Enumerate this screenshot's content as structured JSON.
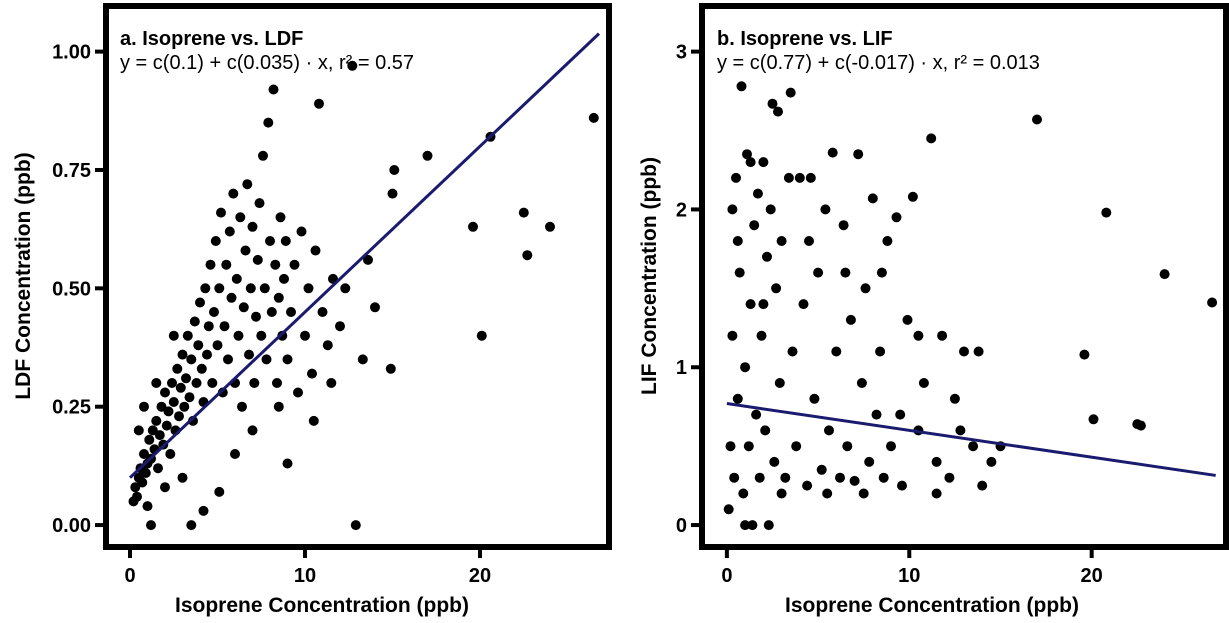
{
  "chart_data": [
    {
      "type": "scatter",
      "title": "a. Isoprene vs. LDF",
      "equation": "y = c(0.1) + c(0.035) · x,  r² = 0.57",
      "xlabel": "Isoprene Concentration (ppb)",
      "ylabel": "LDF Concentration (ppb)",
      "xlim": [
        -1.2,
        27.2
      ],
      "ylim": [
        -0.04,
        1.09
      ],
      "x_ticks": [
        0,
        10,
        20
      ],
      "x_tick_labels": [
        "0",
        "10",
        "20"
      ],
      "y_ticks": [
        0,
        0.25,
        0.5,
        0.75,
        1.0
      ],
      "y_tick_labels": [
        "0.00",
        "0.25",
        "0.50",
        "0.75",
        "1.00"
      ],
      "grid": false,
      "point_color": "#000000",
      "fit": {
        "intercept": 0.1,
        "slope": 0.035,
        "x_range": [
          0,
          26.8
        ],
        "r2": 0.57,
        "color": "#1a1a6e"
      },
      "series": [
        {
          "points": [
            [
              0.2,
              0.05
            ],
            [
              0.3,
              0.08
            ],
            [
              0.4,
              0.06
            ],
            [
              0.5,
              0.1
            ],
            [
              0.6,
              0.12
            ],
            [
              0.7,
              0.09
            ],
            [
              0.8,
              0.15
            ],
            [
              0.9,
              0.11
            ],
            [
              1.0,
              0.13
            ],
            [
              1.1,
              0.18
            ],
            [
              1.2,
              0.14
            ],
            [
              1.3,
              0.2
            ],
            [
              1.4,
              0.16
            ],
            [
              1.5,
              0.22
            ],
            [
              1.6,
              0.12
            ],
            [
              1.7,
              0.19
            ],
            [
              1.8,
              0.25
            ],
            [
              1.9,
              0.17
            ],
            [
              2.0,
              0.28
            ],
            [
              2.1,
              0.21
            ],
            [
              2.2,
              0.24
            ],
            [
              2.3,
              0.15
            ],
            [
              2.4,
              0.3
            ],
            [
              2.5,
              0.26
            ],
            [
              2.6,
              0.2
            ],
            [
              2.7,
              0.33
            ],
            [
              2.8,
              0.23
            ],
            [
              2.9,
              0.29
            ],
            [
              3.0,
              0.36
            ],
            [
              3.1,
              0.25
            ],
            [
              3.2,
              0.31
            ],
            [
              3.3,
              0.4
            ],
            [
              3.4,
              0.27
            ],
            [
              3.5,
              0.35
            ],
            [
              3.6,
              0.22
            ],
            [
              3.7,
              0.43
            ],
            [
              3.8,
              0.3
            ],
            [
              3.9,
              0.38
            ],
            [
              4.0,
              0.47
            ],
            [
              4.1,
              0.33
            ],
            [
              4.2,
              0.26
            ],
            [
              4.3,
              0.5
            ],
            [
              4.4,
              0.36
            ],
            [
              4.5,
              0.42
            ],
            [
              4.6,
              0.55
            ],
            [
              4.7,
              0.3
            ],
            [
              4.8,
              0.45
            ],
            [
              4.9,
              0.6
            ],
            [
              5.0,
              0.38
            ],
            [
              5.1,
              0.5
            ],
            [
              5.2,
              0.66
            ],
            [
              5.3,
              0.28
            ],
            [
              5.4,
              0.42
            ],
            [
              5.5,
              0.55
            ],
            [
              5.6,
              0.35
            ],
            [
              5.7,
              0.62
            ],
            [
              5.8,
              0.48
            ],
            [
              5.9,
              0.7
            ],
            [
              6.0,
              0.3
            ],
            [
              6.1,
              0.52
            ],
            [
              6.2,
              0.4
            ],
            [
              6.3,
              0.65
            ],
            [
              6.4,
              0.25
            ],
            [
              6.5,
              0.46
            ],
            [
              6.6,
              0.58
            ],
            [
              6.7,
              0.72
            ],
            [
              6.8,
              0.36
            ],
            [
              6.9,
              0.5
            ],
            [
              7.0,
              0.63
            ],
            [
              7.1,
              0.3
            ],
            [
              7.2,
              0.44
            ],
            [
              7.3,
              0.56
            ],
            [
              7.4,
              0.68
            ],
            [
              7.5,
              0.4
            ],
            [
              7.6,
              0.78
            ],
            [
              7.7,
              0.5
            ],
            [
              7.8,
              0.35
            ],
            [
              7.9,
              0.85
            ],
            [
              8.0,
              0.6
            ],
            [
              8.1,
              0.45
            ],
            [
              8.2,
              0.92
            ],
            [
              8.3,
              0.55
            ],
            [
              8.4,
              0.3
            ],
            [
              8.5,
              0.48
            ],
            [
              8.6,
              0.65
            ],
            [
              8.7,
              0.4
            ],
            [
              8.8,
              0.52
            ],
            [
              8.9,
              0.6
            ],
            [
              9.0,
              0.35
            ],
            [
              9.2,
              0.45
            ],
            [
              9.4,
              0.55
            ],
            [
              9.6,
              0.28
            ],
            [
              9.8,
              0.62
            ],
            [
              10.0,
              0.4
            ],
            [
              10.2,
              0.5
            ],
            [
              10.4,
              0.32
            ],
            [
              10.6,
              0.58
            ],
            [
              10.8,
              0.89
            ],
            [
              11.0,
              0.45
            ],
            [
              11.3,
              0.38
            ],
            [
              11.6,
              0.52
            ],
            [
              12.0,
              0.42
            ],
            [
              12.3,
              0.5
            ],
            [
              12.7,
              0.97
            ],
            [
              12.9,
              0.0
            ],
            [
              13.3,
              0.35
            ],
            [
              13.6,
              0.56
            ],
            [
              14.0,
              0.46
            ],
            [
              14.9,
              0.33
            ],
            [
              15.0,
              0.7
            ],
            [
              15.1,
              0.75
            ],
            [
              17.0,
              0.78
            ],
            [
              19.6,
              0.63
            ],
            [
              20.1,
              0.4
            ],
            [
              20.6,
              0.82
            ],
            [
              22.5,
              0.66
            ],
            [
              22.7,
              0.57
            ],
            [
              24.0,
              0.63
            ],
            [
              26.5,
              0.86
            ],
            [
              1.2,
              0.0
            ],
            [
              3.5,
              0.0
            ],
            [
              4.2,
              0.03
            ],
            [
              5.1,
              0.07
            ],
            [
              2.0,
              0.08
            ],
            [
              3.0,
              0.1
            ],
            [
              1.0,
              0.04
            ],
            [
              6.0,
              0.15
            ],
            [
              7.0,
              0.2
            ],
            [
              8.5,
              0.25
            ],
            [
              0.5,
              0.2
            ],
            [
              1.5,
              0.3
            ],
            [
              2.5,
              0.4
            ],
            [
              0.8,
              0.25
            ],
            [
              9.0,
              0.13
            ],
            [
              10.5,
              0.22
            ],
            [
              11.5,
              0.3
            ]
          ]
        }
      ]
    },
    {
      "type": "scatter",
      "title": "b. Isoprene vs. LIF",
      "equation": "y = c(0.77) + c(-0.017) · x,  r² = 0.013",
      "xlabel": "Isoprene Concentration (ppb)",
      "ylabel": "LIF Concentration (ppb)",
      "xlim": [
        -1.2,
        27.2
      ],
      "ylim": [
        -0.12,
        3.27
      ],
      "x_ticks": [
        0,
        10,
        20
      ],
      "x_tick_labels": [
        "0",
        "10",
        "20"
      ],
      "y_ticks": [
        0,
        1,
        2,
        3
      ],
      "y_tick_labels": [
        "0",
        "1",
        "2",
        "3"
      ],
      "grid": false,
      "point_color": "#000000",
      "fit": {
        "intercept": 0.77,
        "slope": -0.017,
        "x_range": [
          0,
          26.8
        ],
        "r2": 0.013,
        "color": "#1a1a6e"
      },
      "series": [
        {
          "points": [
            [
              0.1,
              0.1
            ],
            [
              0.2,
              0.5
            ],
            [
              0.3,
              1.2
            ],
            [
              0.4,
              0.3
            ],
            [
              0.5,
              2.2
            ],
            [
              0.6,
              0.8
            ],
            [
              0.7,
              1.6
            ],
            [
              0.8,
              2.78
            ],
            [
              0.9,
              0.2
            ],
            [
              1.0,
              1.0
            ],
            [
              1.1,
              2.35
            ],
            [
              1.2,
              0.5
            ],
            [
              1.3,
              1.4
            ],
            [
              1.4,
              0.0
            ],
            [
              1.5,
              1.9
            ],
            [
              1.6,
              0.7
            ],
            [
              1.7,
              2.1
            ],
            [
              1.8,
              0.3
            ],
            [
              1.9,
              1.2
            ],
            [
              2.0,
              2.3
            ],
            [
              2.1,
              0.6
            ],
            [
              2.2,
              1.7
            ],
            [
              2.3,
              0.0
            ],
            [
              2.4,
              2.0
            ],
            [
              2.5,
              2.67
            ],
            [
              2.6,
              0.4
            ],
            [
              2.7,
              1.5
            ],
            [
              2.8,
              2.62
            ],
            [
              2.9,
              0.9
            ],
            [
              3.0,
              1.8
            ],
            [
              3.2,
              0.3
            ],
            [
              3.4,
              2.2
            ],
            [
              3.5,
              2.74
            ],
            [
              3.6,
              1.1
            ],
            [
              3.8,
              0.5
            ],
            [
              4.0,
              2.2
            ],
            [
              4.2,
              1.4
            ],
            [
              4.4,
              0.25
            ],
            [
              4.6,
              2.2
            ],
            [
              4.8,
              0.8
            ],
            [
              5.0,
              1.6
            ],
            [
              5.2,
              0.35
            ],
            [
              5.4,
              2.0
            ],
            [
              5.6,
              0.6
            ],
            [
              5.8,
              2.36
            ],
            [
              6.0,
              1.1
            ],
            [
              6.2,
              0.3
            ],
            [
              6.4,
              1.9
            ],
            [
              6.6,
              0.5
            ],
            [
              6.8,
              1.3
            ],
            [
              7.0,
              0.28
            ],
            [
              7.2,
              2.35
            ],
            [
              7.4,
              0.9
            ],
            [
              7.6,
              1.5
            ],
            [
              7.8,
              0.4
            ],
            [
              8.0,
              2.07
            ],
            [
              8.2,
              0.7
            ],
            [
              8.4,
              1.1
            ],
            [
              8.6,
              0.3
            ],
            [
              8.8,
              1.8
            ],
            [
              9.0,
              0.5
            ],
            [
              9.3,
              1.95
            ],
            [
              9.6,
              0.25
            ],
            [
              9.9,
              1.3
            ],
            [
              10.2,
              2.08
            ],
            [
              10.5,
              0.6
            ],
            [
              10.8,
              0.9
            ],
            [
              11.2,
              2.45
            ],
            [
              11.5,
              0.4
            ],
            [
              11.8,
              1.2
            ],
            [
              12.2,
              0.3
            ],
            [
              12.5,
              0.8
            ],
            [
              13.0,
              1.1
            ],
            [
              13.5,
              0.5
            ],
            [
              14.0,
              0.25
            ],
            [
              14.5,
              0.4
            ],
            [
              15.0,
              0.5
            ],
            [
              17.0,
              2.57
            ],
            [
              19.6,
              1.08
            ],
            [
              20.1,
              0.67
            ],
            [
              20.8,
              1.98
            ],
            [
              22.5,
              0.64
            ],
            [
              22.7,
              0.63
            ],
            [
              24.0,
              1.59
            ],
            [
              26.6,
              1.41
            ],
            [
              0.3,
              2.0
            ],
            [
              0.6,
              1.8
            ],
            [
              1.0,
              0.0
            ],
            [
              1.3,
              2.3
            ],
            [
              2.0,
              1.4
            ],
            [
              3.0,
              0.2
            ],
            [
              4.5,
              1.8
            ],
            [
              5.5,
              0.2
            ],
            [
              6.5,
              1.6
            ],
            [
              7.5,
              0.2
            ],
            [
              8.5,
              1.6
            ],
            [
              9.5,
              0.7
            ],
            [
              10.5,
              1.2
            ],
            [
              11.5,
              0.2
            ],
            [
              12.8,
              0.6
            ],
            [
              13.8,
              1.1
            ]
          ]
        }
      ]
    }
  ]
}
